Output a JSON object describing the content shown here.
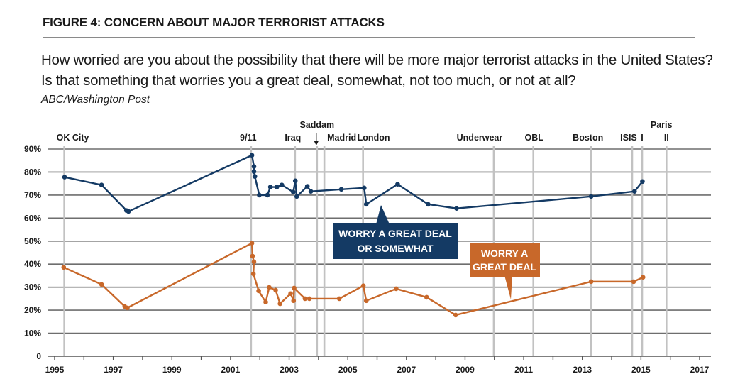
{
  "figure": {
    "title": "FIGURE 4: CONCERN ABOUT MAJOR TERRORIST ATTACKS",
    "question": "How worried are you about the possibility that there will be more major terrorist attacks in the United States? Is that something that worries you a great deal, somewhat, not too much, or not at all?",
    "source": "ABC/Washington Post"
  },
  "chart_data": {
    "type": "line",
    "title": "FIGURE 4: CONCERN ABOUT MAJOR TERRORIST ATTACKS",
    "xlabel": "",
    "ylabel": "",
    "xlim": [
      1995,
      2017
    ],
    "ylim": [
      0,
      90
    ],
    "grid": true,
    "x_ticks": [
      1995,
      1996,
      1997,
      1998,
      1999,
      2000,
      2001,
      2002,
      2003,
      2004,
      2005,
      2006,
      2007,
      2008,
      2009,
      2010,
      2011,
      2012,
      2013,
      2014,
      2015,
      2016,
      2017
    ],
    "x_tick_labels": [
      "1995",
      "",
      "1997",
      "",
      "1999",
      "",
      "2001",
      "",
      "2003",
      "",
      "2005",
      "",
      "2007",
      "",
      "2009",
      "",
      "2011",
      "",
      "2013",
      "",
      "2015",
      "",
      "2017"
    ],
    "y_ticks": [
      0,
      10,
      20,
      30,
      40,
      50,
      60,
      70,
      80,
      90
    ],
    "y_tick_labels": [
      "0",
      "10%",
      "20%",
      "30%",
      "40%",
      "50%",
      "60%",
      "70%",
      "80%",
      "90%"
    ],
    "events": [
      {
        "label": "OK City",
        "x": 1995.33
      },
      {
        "label": "9/11",
        "x": 2001.7
      },
      {
        "label": "Iraq",
        "x": 2003.2
      },
      {
        "label": "Saddam",
        "x": 2003.95,
        "arrow": true
      },
      {
        "label": "Madrid",
        "x": 2004.2
      },
      {
        "label": "London",
        "x": 2005.52
      },
      {
        "label": "Underwear",
        "x": 2009.98
      },
      {
        "label": "OBL",
        "x": 2011.33
      },
      {
        "label": "Boston",
        "x": 2013.29
      },
      {
        "label": "ISIS",
        "x": 2014.7
      },
      {
        "label": "I",
        "x": 2015.04,
        "group": "Paris"
      },
      {
        "label": "II",
        "x": 2015.87,
        "group": "Paris"
      }
    ],
    "paris_group_label": "Paris",
    "series": [
      {
        "name": "WORRY A GREAT DEAL OR SOMEWHAT",
        "callout_lines": [
          "WORRY A GREAT DEAL",
          "OR SOMEWHAT"
        ],
        "color": "#143a64",
        "x": [
          1995.34,
          1996.6,
          1997.45,
          1997.52,
          2001.73,
          2001.8,
          2001.8,
          2001.83,
          2001.98,
          2002.26,
          2002.36,
          2002.58,
          2002.75,
          2003.14,
          2003.21,
          2003.26,
          2003.62,
          2003.74,
          2004.78,
          2005.56,
          2005.63,
          2006.7,
          2007.74,
          2008.71,
          2013.3,
          2014.78,
          2015.05
        ],
        "values": [
          77.8,
          74.4,
          63.3,
          62.9,
          87.3,
          82.4,
          80.2,
          78.1,
          70,
          70,
          73.5,
          73.5,
          74.4,
          71.3,
          76.2,
          69.4,
          73.8,
          71.6,
          72.5,
          73.1,
          66,
          74.7,
          66,
          64.2,
          69.4,
          71.6,
          75.9
        ]
      },
      {
        "name": "WORRY A GREAT DEAL",
        "callout_lines": [
          "WORRY A",
          "GREAT DEAL"
        ],
        "color": "#c8682a",
        "x": [
          1995.31,
          1996.6,
          1997.39,
          1997.48,
          2001.73,
          2001.75,
          2001.8,
          2001.78,
          2001.96,
          2002.2,
          2002.32,
          2002.54,
          2002.69,
          2003.05,
          2003.15,
          2003.17,
          2003.54,
          2003.69,
          2004.71,
          2005.53,
          2005.63,
          2006.65,
          2007.69,
          2008.68,
          2013.3,
          2014.75,
          2015.07
        ],
        "values": [
          38.6,
          31.2,
          21.6,
          21.0,
          49.1,
          43.5,
          41.0,
          35.8,
          28.4,
          23.5,
          29.9,
          28.7,
          22.8,
          27.2,
          24.1,
          29.6,
          25.0,
          25.0,
          25.0,
          30.6,
          24.1,
          29.3,
          25.6,
          17.9,
          32.4,
          32.4,
          34.3
        ]
      }
    ]
  }
}
